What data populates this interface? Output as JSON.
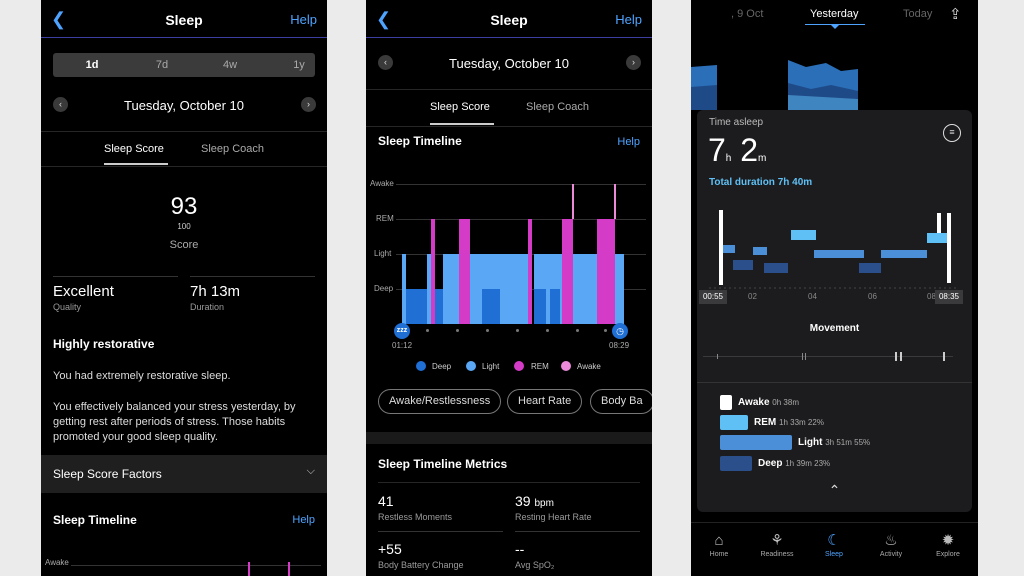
{
  "colors": {
    "deep": "#1f6fd4",
    "light": "#5aa8f5",
    "rem": "#d43bc7",
    "awake": "#ea8ad8",
    "accent": "#4ea3ff",
    "p3_light": "#4a8fd8",
    "p3_deep": "#2a4f8a",
    "p3_rem": "#5fc0f5"
  },
  "p1": {
    "header": {
      "title": "Sleep",
      "help": "Help",
      "back_icon": "chevron-left-icon"
    },
    "range_tabs": [
      "1d",
      "7d",
      "4w",
      "1y"
    ],
    "date": "Tuesday, October 10",
    "tabs": {
      "score": "Sleep Score",
      "coach": "Sleep Coach"
    },
    "score": {
      "value": "93",
      "max": "100",
      "label": "Score"
    },
    "quality": {
      "value": "Excellent",
      "label": "Quality"
    },
    "duration": {
      "value": "7h 13m",
      "label": "Duration"
    },
    "headline": "Highly restorative",
    "para1": "You had extremely restorative sleep.",
    "para2": "You effectively balanced your stress yesterday, by getting rest after periods of stress. Those habits promoted your good sleep quality.",
    "factors_label": "Sleep Score Factors",
    "timeline_title": "Sleep Timeline",
    "timeline_help": "Help",
    "timeline_awake": "Awake"
  },
  "p2": {
    "header": {
      "title": "Sleep",
      "help": "Help"
    },
    "date": "Tuesday, October 10",
    "tabs": {
      "score": "Sleep Score",
      "coach": "Sleep Coach"
    },
    "timeline_title": "Sleep Timeline",
    "timeline_help": "Help",
    "y_labels": [
      "Awake",
      "REM",
      "Light",
      "Deep"
    ],
    "start_time": "01:12",
    "end_time": "08:29",
    "start_badge": "zzz",
    "legend": [
      "Deep",
      "Light",
      "REM",
      "Awake"
    ],
    "pills": [
      "Awake/Restlessness",
      "Heart Rate",
      "Body Ba"
    ],
    "metrics_title": "Sleep Timeline Metrics",
    "metrics": [
      {
        "value": "41",
        "unit": "",
        "label": "Restless Moments"
      },
      {
        "value": "39",
        "unit": "bpm",
        "label": "Resting Heart Rate"
      },
      {
        "value": "+55",
        "unit": "",
        "label": "Body Battery Change"
      },
      {
        "value": "--",
        "unit": "",
        "label": "Avg SpO₂"
      }
    ]
  },
  "p3": {
    "top_tabs": {
      "prev": ", 9 Oct",
      "current": "Yesterday",
      "next": "Today"
    },
    "share_icon": "share-icon",
    "time_asleep_label": "Time asleep",
    "hours": "7",
    "h_unit": "h",
    "minutes": "2",
    "m_unit": "m",
    "total_duration": "Total duration 7h 40m",
    "hypno_start": "00:55",
    "hypno_end": "08:35",
    "hypno_ticks": [
      "02",
      "04",
      "06",
      "08"
    ],
    "movement_label": "Movement",
    "stages": [
      {
        "name": "Awake",
        "detail": "0h 38m"
      },
      {
        "name": "REM",
        "detail": "1h 33m  22%"
      },
      {
        "name": "Light",
        "detail": "3h 51m  55%"
      },
      {
        "name": "Deep",
        "detail": "1h 39m  23%"
      }
    ],
    "stage_fractions": [
      0.08,
      0.22,
      0.55,
      0.23
    ],
    "nav": [
      "Home",
      "Readiness",
      "Sleep",
      "Activity",
      "Explore"
    ],
    "nav_active": "Sleep"
  }
}
